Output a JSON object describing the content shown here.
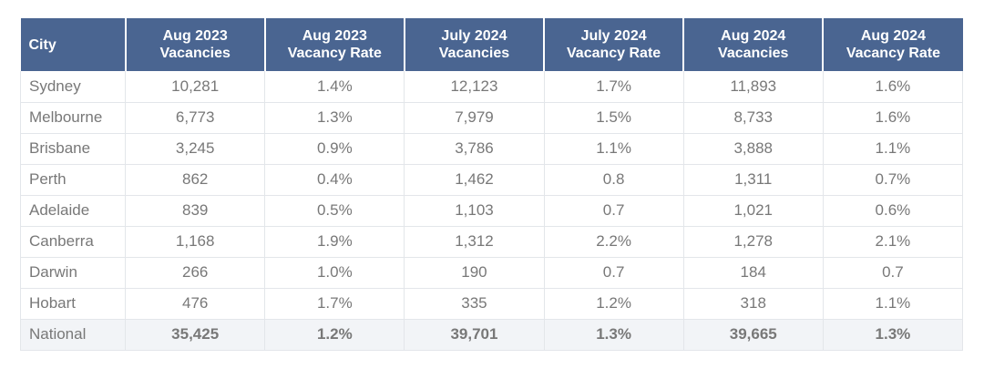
{
  "table": {
    "headers": [
      {
        "line1": "City",
        "line2": ""
      },
      {
        "line1": "Aug 2023",
        "line2": "Vacancies"
      },
      {
        "line1": "Aug 2023",
        "line2": "Vacancy Rate"
      },
      {
        "line1": "July 2024",
        "line2": "Vacancies"
      },
      {
        "line1": "July 2024",
        "line2": "Vacancy Rate"
      },
      {
        "line1": "Aug 2024",
        "line2": "Vacancies"
      },
      {
        "line1": "Aug 2024",
        "line2": "Vacancy Rate"
      }
    ],
    "rows": [
      [
        "Sydney",
        "10,281",
        "1.4%",
        "12,123",
        "1.7%",
        "11,893",
        "1.6%"
      ],
      [
        "Melbourne",
        "6,773",
        "1.3%",
        "7,979",
        "1.5%",
        "8,733",
        "1.6%"
      ],
      [
        "Brisbane",
        "3,245",
        "0.9%",
        "3,786",
        "1.1%",
        "3,888",
        "1.1%"
      ],
      [
        "Perth",
        "862",
        "0.4%",
        "1,462",
        "0.8",
        "1,311",
        "0.7%"
      ],
      [
        "Adelaide",
        "839",
        "0.5%",
        "1,103",
        "0.7",
        "1,021",
        "0.6%"
      ],
      [
        "Canberra",
        "1,168",
        "1.9%",
        "1,312",
        "2.2%",
        "1,278",
        "2.1%"
      ],
      [
        "Darwin",
        "266",
        "1.0%",
        "190",
        "0.7",
        "184",
        "0.7"
      ],
      [
        "Hobart",
        "476",
        "1.7%",
        "335",
        "1.2%",
        "318",
        "1.1%"
      ]
    ],
    "total": [
      "National",
      "35,425",
      "1.2%",
      "39,701",
      "1.3%",
      "39,665",
      "1.3%"
    ]
  }
}
